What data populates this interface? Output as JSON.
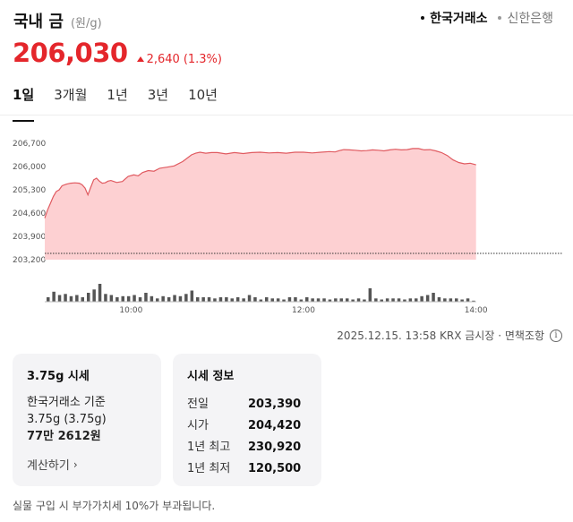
{
  "header": {
    "title": "국내 금",
    "unit": "(원/g)"
  },
  "sources": [
    {
      "label": "한국거래소",
      "active": true
    },
    {
      "label": "신한은행",
      "active": false
    }
  ],
  "price": {
    "value": "206,030",
    "change": "2,640",
    "percent": "(1.3%)",
    "direction": "up"
  },
  "tabs": [
    {
      "label": "1일",
      "active": true
    },
    {
      "label": "3개월",
      "active": false
    },
    {
      "label": "1년",
      "active": false
    },
    {
      "label": "3년",
      "active": false
    },
    {
      "label": "10년",
      "active": false
    }
  ],
  "chart_data": {
    "type": "area",
    "y_ticks": [
      "206,700",
      "206,000",
      "205,300",
      "204,600",
      "203,900",
      "203,200"
    ],
    "y_tick_values": [
      206700,
      206000,
      205300,
      204600,
      203900,
      203200
    ],
    "ylim": [
      203200,
      206700
    ],
    "x_ticks": [
      "10:00",
      "12:00",
      "14:00"
    ],
    "x_tick_values": [
      600,
      720,
      840
    ],
    "xlim": [
      540,
      900
    ],
    "baseline": 203390,
    "series": [
      {
        "x": [
          540,
          542,
          544,
          546,
          548,
          550,
          552,
          555,
          558,
          561,
          564,
          566,
          568,
          570,
          572,
          574,
          576,
          578,
          580,
          582,
          584,
          586,
          590,
          594,
          598,
          602,
          605,
          608,
          612,
          616,
          620,
          625,
          630,
          636,
          642,
          645,
          648,
          652,
          656,
          660,
          666,
          672,
          678,
          684,
          690,
          696,
          702,
          708,
          714,
          720,
          726,
          732,
          738,
          742,
          745,
          748,
          752,
          756,
          760,
          764,
          768,
          772,
          776,
          780,
          784,
          788,
          792,
          796,
          800,
          804,
          808,
          812,
          816,
          820,
          824,
          828,
          832,
          836,
          840
        ],
        "values": [
          204450,
          204700,
          204900,
          205100,
          205250,
          205300,
          205420,
          205470,
          205500,
          205510,
          205500,
          205450,
          205350,
          205150,
          205380,
          205600,
          205650,
          205560,
          205500,
          205510,
          205560,
          205580,
          205520,
          205550,
          205700,
          205750,
          205720,
          205820,
          205880,
          205860,
          205950,
          205980,
          206020,
          206150,
          206350,
          206400,
          206430,
          206400,
          206420,
          206420,
          206380,
          206420,
          206390,
          206420,
          206430,
          206410,
          206420,
          206400,
          206430,
          206430,
          206410,
          206430,
          206450,
          206440,
          206480,
          206510,
          206500,
          206490,
          206470,
          206480,
          206500,
          206490,
          206470,
          206500,
          206520,
          206500,
          206510,
          206540,
          206540,
          206500,
          206510,
          206470,
          206420,
          206330,
          206200,
          206120,
          206080,
          206100,
          206050
        ]
      }
    ],
    "volume": [
      4,
      9,
      6,
      7,
      5,
      6,
      4,
      8,
      11,
      16,
      7,
      6,
      4,
      5,
      5,
      6,
      4,
      8,
      5,
      3,
      5,
      4,
      6,
      5,
      7,
      10,
      4,
      4,
      4,
      3,
      4,
      4,
      3,
      4,
      3,
      6,
      4,
      2,
      4,
      3,
      3,
      2,
      4,
      4,
      2,
      4,
      3,
      3,
      3,
      2,
      3,
      3,
      3,
      2,
      3,
      2,
      12,
      3,
      2,
      3,
      3,
      3,
      2,
      3,
      3,
      5,
      6,
      8,
      4,
      3,
      3,
      3,
      2,
      3,
      1
    ]
  },
  "source_note": {
    "text": "2025.12.15. 13:58 KRX 금시장 · 면책조항",
    "info_icon": "info-icon"
  },
  "card_left": {
    "title": "3.75g 시세",
    "line1": "한국거래소 기준",
    "line2": "3.75g (3.75g)",
    "line3": "77만 2612원",
    "calc_label": "계산하기",
    "calc_icon": "chevron-right-icon"
  },
  "card_right": {
    "title": "시세 정보",
    "rows": [
      {
        "label": "전일",
        "value": "203,390"
      },
      {
        "label": "시가",
        "value": "204,420"
      },
      {
        "label": "1년 최고",
        "value": "230,920"
      },
      {
        "label": "1년 최저",
        "value": "120,500"
      }
    ]
  },
  "footnote": "실물 구입 시 부가가치세 10%가 부과됩니다.",
  "colors": {
    "up": "#e4262b",
    "area_fill": "#fdd0d2",
    "area_line": "#e05a60",
    "volume": "#555555"
  }
}
